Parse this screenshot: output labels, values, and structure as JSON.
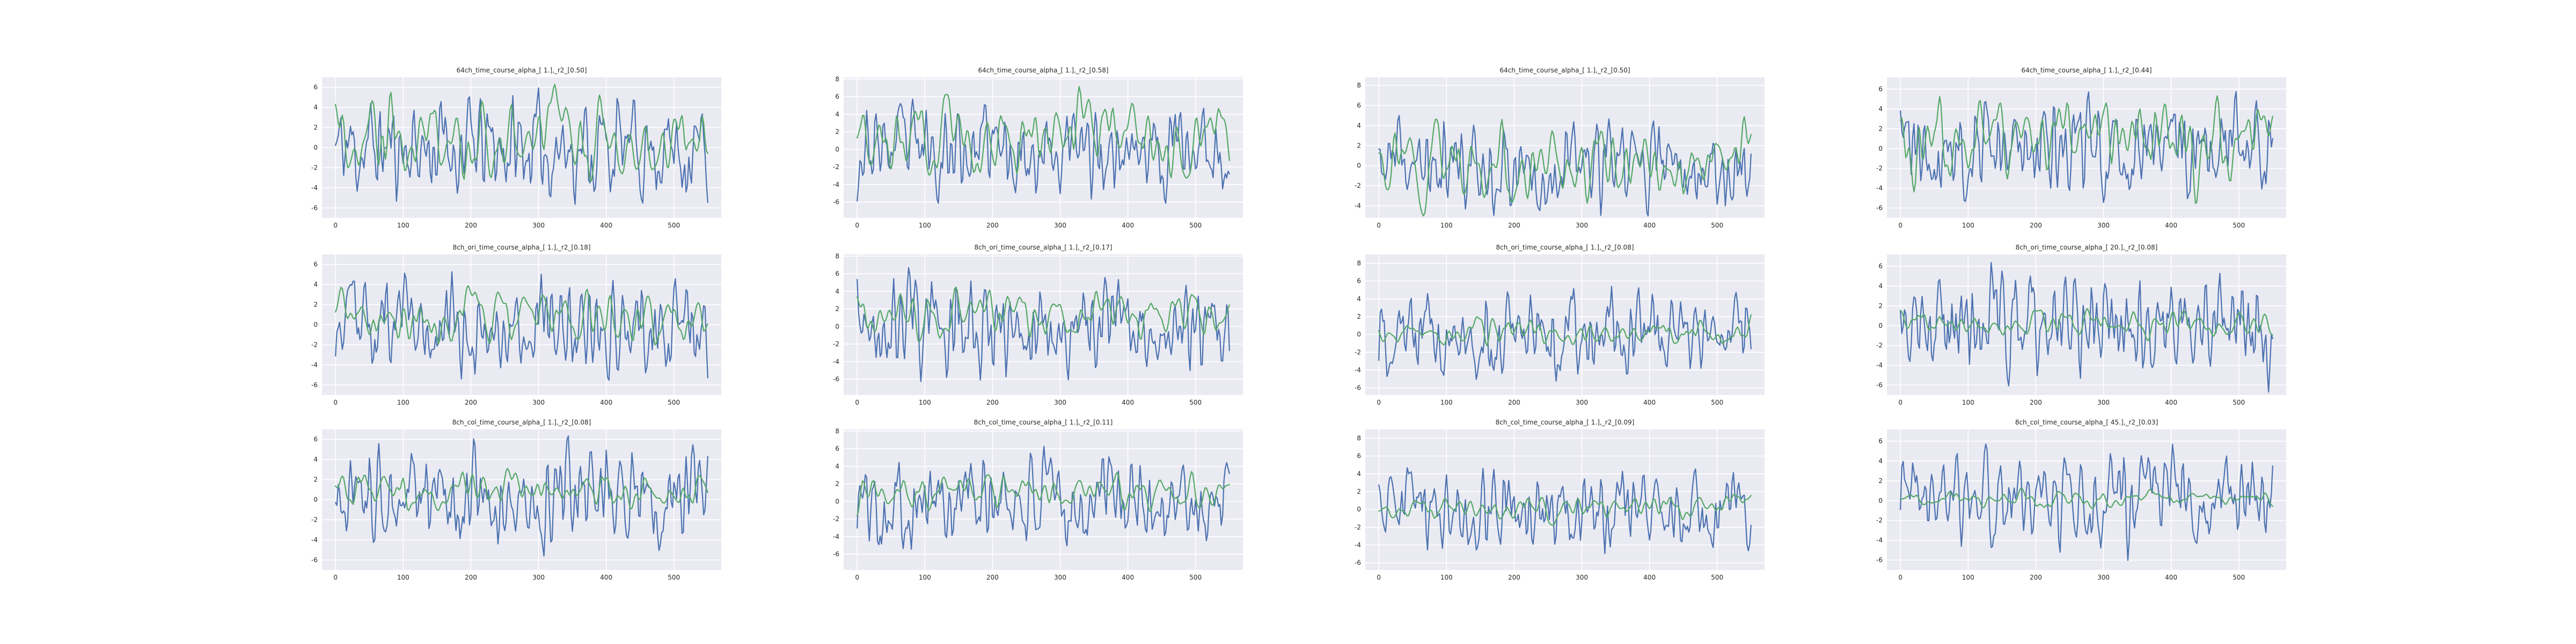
{
  "figure": {
    "colors": {
      "series_0": "#4c72b0",
      "series_1": "#55a868",
      "panel_background": "#eaeaf2",
      "grid": "#ffffff"
    },
    "x_axis": {
      "lim": [
        -20,
        570
      ],
      "ticks": [
        0,
        100,
        200,
        300,
        400,
        500
      ],
      "tick_labels": [
        "0",
        "100",
        "200",
        "300",
        "400",
        "500"
      ]
    }
  },
  "chart_data": [
    {
      "type": "line",
      "title": "64ch_time_course_alpha_[ 1.],_r2_[0.50]",
      "ylim": [
        -7.0,
        7.0
      ],
      "yticks": [
        -6,
        -4,
        -2,
        0,
        2,
        4,
        6
      ],
      "x_range": [
        0,
        550
      ],
      "seed": 11,
      "blue_amp": 2.5,
      "green_amp": 2.1,
      "green_offset": 0.8,
      "grid": true
    },
    {
      "type": "line",
      "title": "64ch_time_course_alpha_[ 1.],_r2_[0.58]",
      "ylim": [
        -7.8,
        8.2
      ],
      "yticks": [
        -6,
        -4,
        -2,
        0,
        2,
        4,
        6,
        8
      ],
      "x_range": [
        0,
        550
      ],
      "seed": 23,
      "blue_amp": 2.6,
      "green_amp": 2.3,
      "green_offset": 1.2,
      "grid": true
    },
    {
      "type": "line",
      "title": "64ch_time_course_alpha_[ 1.],_r2_[0.50]",
      "ylim": [
        -5.2,
        8.8
      ],
      "yticks": [
        -4,
        -2,
        0,
        2,
        4,
        6,
        8
      ],
      "x_range": [
        0,
        550
      ],
      "seed": 37,
      "blue_amp": 2.2,
      "green_amp": 1.9,
      "green_offset": 0.5,
      "grid": true
    },
    {
      "type": "line",
      "title": "64ch_time_course_alpha_[ 1.],_r2_[0.44]",
      "ylim": [
        -7.0,
        7.2
      ],
      "yticks": [
        -6,
        -4,
        -2,
        0,
        2,
        4,
        6
      ],
      "x_range": [
        0,
        550
      ],
      "seed": 41,
      "blue_amp": 2.5,
      "green_amp": 2.0,
      "green_offset": 0.9,
      "grid": true
    },
    {
      "type": "line",
      "title": "8ch_ori_time_course_alpha_[ 1.],_r2_[0.18]",
      "ylim": [
        -7.0,
        7.0
      ],
      "yticks": [
        -6,
        -4,
        -2,
        0,
        2,
        4,
        6
      ],
      "x_range": [
        0,
        550
      ],
      "seed": 53,
      "blue_amp": 2.5,
      "green_amp": 1.4,
      "green_offset": 1.0,
      "grid": true
    },
    {
      "type": "line",
      "title": "8ch_ori_time_course_alpha_[ 1.],_r2_[0.17]",
      "ylim": [
        -7.8,
        8.2
      ],
      "yticks": [
        -6,
        -4,
        -2,
        0,
        2,
        4,
        6,
        8
      ],
      "x_range": [
        0,
        550
      ],
      "seed": 67,
      "blue_amp": 2.6,
      "green_amp": 1.4,
      "green_offset": 1.2,
      "grid": true
    },
    {
      "type": "line",
      "title": "8ch_ori_time_course_alpha_[ 1.],_r2_[0.08]",
      "ylim": [
        -6.8,
        9.0
      ],
      "yticks": [
        -6,
        -4,
        -2,
        0,
        2,
        4,
        6,
        8
      ],
      "x_range": [
        0,
        550
      ],
      "seed": 79,
      "blue_amp": 2.4,
      "green_amp": 0.7,
      "green_offset": 0.3,
      "grid": true
    },
    {
      "type": "line",
      "title": "8ch_ori_time_course_alpha_[ 20.],_r2_[0.08]",
      "ylim": [
        -7.0,
        7.2
      ],
      "yticks": [
        -6,
        -4,
        -2,
        0,
        2,
        4,
        6
      ],
      "x_range": [
        0,
        550
      ],
      "seed": 83,
      "blue_amp": 2.5,
      "green_amp": 0.7,
      "green_offset": 0.3,
      "grid": true
    },
    {
      "type": "line",
      "title": "8ch_col_time_course_alpha_[ 1.],_r2_[0.08]",
      "ylim": [
        -7.0,
        7.0
      ],
      "yticks": [
        -6,
        -4,
        -2,
        0,
        2,
        4,
        6
      ],
      "x_range": [
        0,
        550
      ],
      "seed": 97,
      "blue_amp": 2.5,
      "green_amp": 0.9,
      "green_offset": 0.9,
      "grid": true
    },
    {
      "type": "line",
      "title": "8ch_col_time_course_alpha_[ 1.],_r2_[0.11]",
      "ylim": [
        -7.8,
        8.2
      ],
      "yticks": [
        -6,
        -4,
        -2,
        0,
        2,
        4,
        6,
        8
      ],
      "x_range": [
        0,
        550
      ],
      "seed": 101,
      "blue_amp": 2.6,
      "green_amp": 1.0,
      "green_offset": 1.0,
      "grid": true
    },
    {
      "type": "line",
      "title": "8ch_col_time_course_alpha_[ 1.],_r2_[0.09]",
      "ylim": [
        -6.8,
        9.0
      ],
      "yticks": [
        -6,
        -4,
        -2,
        0,
        2,
        4,
        6,
        8
      ],
      "x_range": [
        0,
        550
      ],
      "seed": 113,
      "blue_amp": 2.4,
      "green_amp": 0.7,
      "green_offset": 0.3,
      "grid": true
    },
    {
      "type": "line",
      "title": "8ch_col_time_course_alpha_[ 45.],_r2_[0.03]",
      "ylim": [
        -7.0,
        7.2
      ],
      "yticks": [
        -6,
        -4,
        -2,
        0,
        2,
        4,
        6
      ],
      "x_range": [
        0,
        550
      ],
      "seed": 127,
      "blue_amp": 2.5,
      "green_amp": 0.4,
      "green_offset": 0.2,
      "grid": true
    }
  ]
}
